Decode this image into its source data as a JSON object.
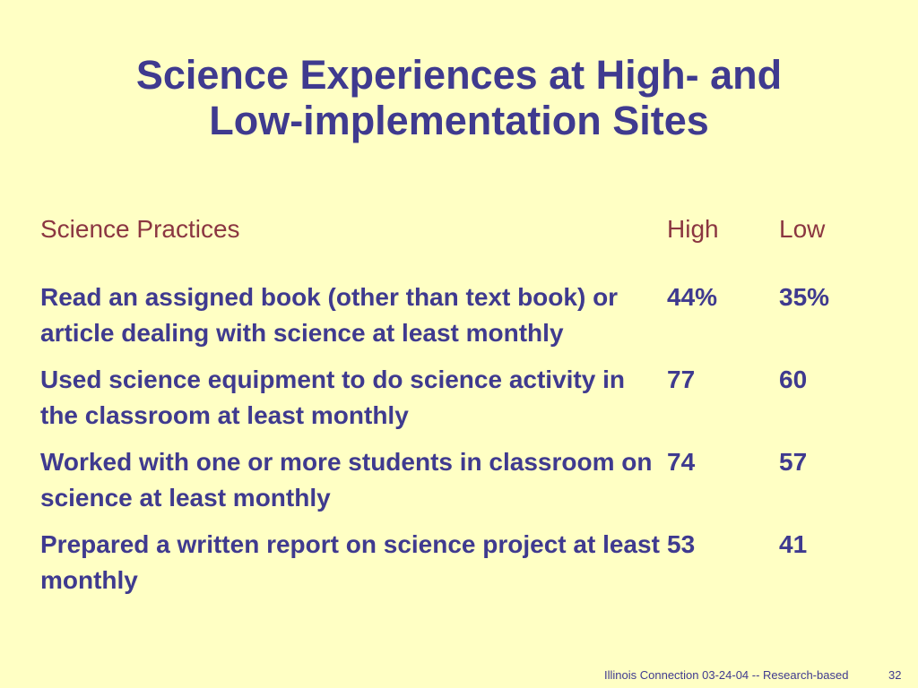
{
  "slide": {
    "title_line1": "Science Experiences at High- and",
    "title_line2": "Low-implementation Sites",
    "table": {
      "headers": {
        "practice": "Science Practices",
        "high": "High",
        "low": "Low"
      },
      "rows": [
        {
          "practice": "Read an assigned book (other than text book) or article dealing with science at least monthly",
          "high": "44%",
          "low": "35%"
        },
        {
          "practice": "Used science equipment to do science activity in the classroom at least monthly",
          "high": "77",
          "low": "60"
        },
        {
          "practice": "Worked with one or more students in classroom on science at least monthly",
          "high": "74",
          "low": "57"
        },
        {
          "practice": "Prepared a written report on science project at least monthly",
          "high": "53",
          "low": "41"
        }
      ]
    },
    "footer": "Illinois Connection 03-24-04 -- Research-based",
    "page_number": "32"
  },
  "colors": {
    "background": "#ffffc4",
    "title_text": "#3f3a8f",
    "header_text": "#8b3641",
    "body_text": "#3f3a8f"
  }
}
